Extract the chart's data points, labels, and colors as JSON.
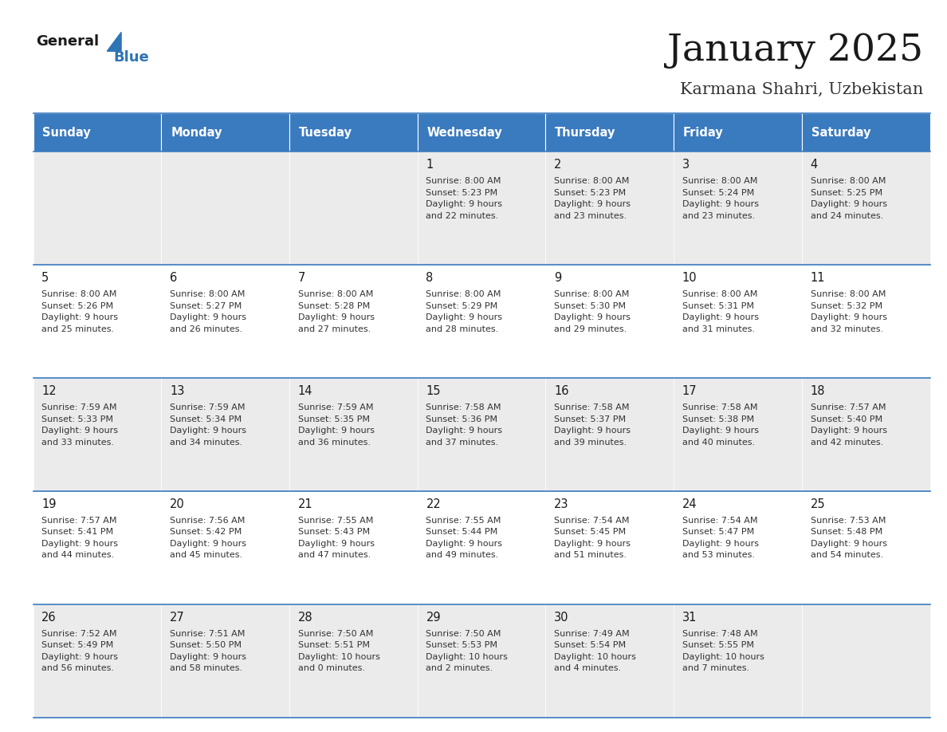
{
  "title": "January 2025",
  "subtitle": "Karmana Shahri, Uzbekistan",
  "header_color": "#3a7abf",
  "header_text_color": "#ffffff",
  "cell_bg_even": "#ebebeb",
  "cell_bg_odd": "#ffffff",
  "border_color": "#3a7abf",
  "days_of_week": [
    "Sunday",
    "Monday",
    "Tuesday",
    "Wednesday",
    "Thursday",
    "Friday",
    "Saturday"
  ],
  "weeks": [
    [
      {
        "day": "",
        "sunrise": "",
        "sunset": "",
        "daylight": ""
      },
      {
        "day": "",
        "sunrise": "",
        "sunset": "",
        "daylight": ""
      },
      {
        "day": "",
        "sunrise": "",
        "sunset": "",
        "daylight": ""
      },
      {
        "day": "1",
        "sunrise": "8:00 AM",
        "sunset": "5:23 PM",
        "daylight": "9 hours\nand 22 minutes."
      },
      {
        "day": "2",
        "sunrise": "8:00 AM",
        "sunset": "5:23 PM",
        "daylight": "9 hours\nand 23 minutes."
      },
      {
        "day": "3",
        "sunrise": "8:00 AM",
        "sunset": "5:24 PM",
        "daylight": "9 hours\nand 23 minutes."
      },
      {
        "day": "4",
        "sunrise": "8:00 AM",
        "sunset": "5:25 PM",
        "daylight": "9 hours\nand 24 minutes."
      }
    ],
    [
      {
        "day": "5",
        "sunrise": "8:00 AM",
        "sunset": "5:26 PM",
        "daylight": "9 hours\nand 25 minutes."
      },
      {
        "day": "6",
        "sunrise": "8:00 AM",
        "sunset": "5:27 PM",
        "daylight": "9 hours\nand 26 minutes."
      },
      {
        "day": "7",
        "sunrise": "8:00 AM",
        "sunset": "5:28 PM",
        "daylight": "9 hours\nand 27 minutes."
      },
      {
        "day": "8",
        "sunrise": "8:00 AM",
        "sunset": "5:29 PM",
        "daylight": "9 hours\nand 28 minutes."
      },
      {
        "day": "9",
        "sunrise": "8:00 AM",
        "sunset": "5:30 PM",
        "daylight": "9 hours\nand 29 minutes."
      },
      {
        "day": "10",
        "sunrise": "8:00 AM",
        "sunset": "5:31 PM",
        "daylight": "9 hours\nand 31 minutes."
      },
      {
        "day": "11",
        "sunrise": "8:00 AM",
        "sunset": "5:32 PM",
        "daylight": "9 hours\nand 32 minutes."
      }
    ],
    [
      {
        "day": "12",
        "sunrise": "7:59 AM",
        "sunset": "5:33 PM",
        "daylight": "9 hours\nand 33 minutes."
      },
      {
        "day": "13",
        "sunrise": "7:59 AM",
        "sunset": "5:34 PM",
        "daylight": "9 hours\nand 34 minutes."
      },
      {
        "day": "14",
        "sunrise": "7:59 AM",
        "sunset": "5:35 PM",
        "daylight": "9 hours\nand 36 minutes."
      },
      {
        "day": "15",
        "sunrise": "7:58 AM",
        "sunset": "5:36 PM",
        "daylight": "9 hours\nand 37 minutes."
      },
      {
        "day": "16",
        "sunrise": "7:58 AM",
        "sunset": "5:37 PM",
        "daylight": "9 hours\nand 39 minutes."
      },
      {
        "day": "17",
        "sunrise": "7:58 AM",
        "sunset": "5:38 PM",
        "daylight": "9 hours\nand 40 minutes."
      },
      {
        "day": "18",
        "sunrise": "7:57 AM",
        "sunset": "5:40 PM",
        "daylight": "9 hours\nand 42 minutes."
      }
    ],
    [
      {
        "day": "19",
        "sunrise": "7:57 AM",
        "sunset": "5:41 PM",
        "daylight": "9 hours\nand 44 minutes."
      },
      {
        "day": "20",
        "sunrise": "7:56 AM",
        "sunset": "5:42 PM",
        "daylight": "9 hours\nand 45 minutes."
      },
      {
        "day": "21",
        "sunrise": "7:55 AM",
        "sunset": "5:43 PM",
        "daylight": "9 hours\nand 47 minutes."
      },
      {
        "day": "22",
        "sunrise": "7:55 AM",
        "sunset": "5:44 PM",
        "daylight": "9 hours\nand 49 minutes."
      },
      {
        "day": "23",
        "sunrise": "7:54 AM",
        "sunset": "5:45 PM",
        "daylight": "9 hours\nand 51 minutes."
      },
      {
        "day": "24",
        "sunrise": "7:54 AM",
        "sunset": "5:47 PM",
        "daylight": "9 hours\nand 53 minutes."
      },
      {
        "day": "25",
        "sunrise": "7:53 AM",
        "sunset": "5:48 PM",
        "daylight": "9 hours\nand 54 minutes."
      }
    ],
    [
      {
        "day": "26",
        "sunrise": "7:52 AM",
        "sunset": "5:49 PM",
        "daylight": "9 hours\nand 56 minutes."
      },
      {
        "day": "27",
        "sunrise": "7:51 AM",
        "sunset": "5:50 PM",
        "daylight": "9 hours\nand 58 minutes."
      },
      {
        "day": "28",
        "sunrise": "7:50 AM",
        "sunset": "5:51 PM",
        "daylight": "10 hours\nand 0 minutes."
      },
      {
        "day": "29",
        "sunrise": "7:50 AM",
        "sunset": "5:53 PM",
        "daylight": "10 hours\nand 2 minutes."
      },
      {
        "day": "30",
        "sunrise": "7:49 AM",
        "sunset": "5:54 PM",
        "daylight": "10 hours\nand 4 minutes."
      },
      {
        "day": "31",
        "sunrise": "7:48 AM",
        "sunset": "5:55 PM",
        "daylight": "10 hours\nand 7 minutes."
      },
      {
        "day": "",
        "sunrise": "",
        "sunset": "",
        "daylight": ""
      }
    ]
  ]
}
